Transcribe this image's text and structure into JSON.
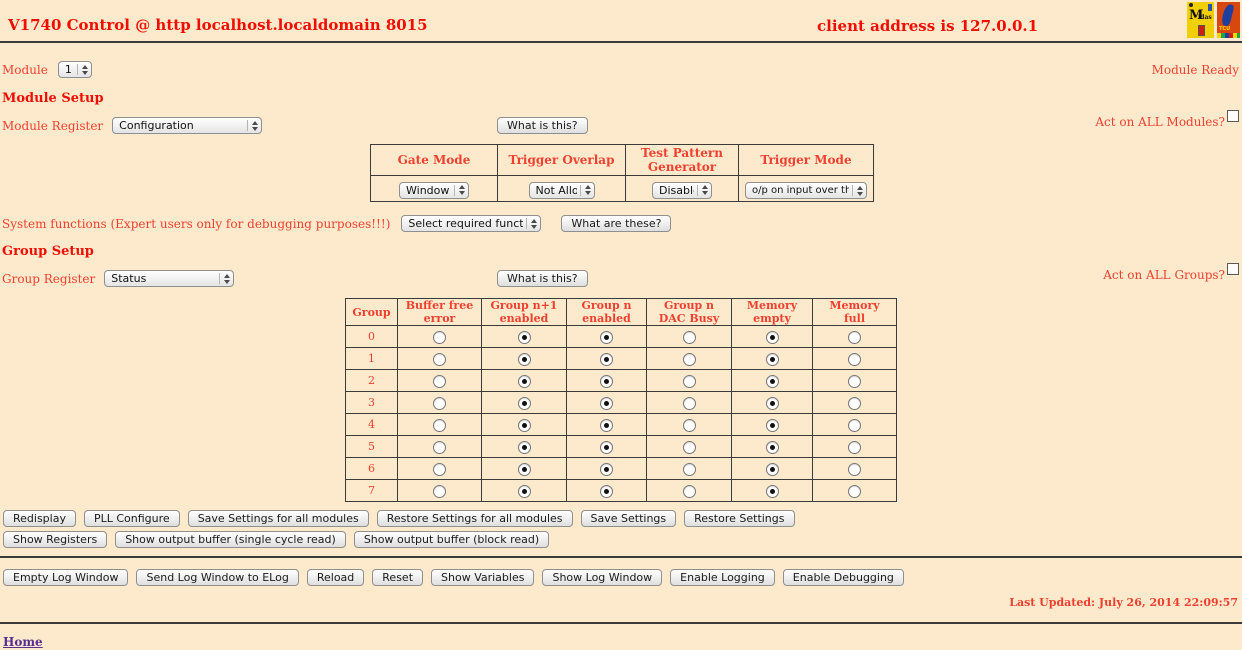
{
  "header": {
    "title": "V1740 Control @ http localhost.localdomain 8015",
    "client_address": "client address is 127.0.0.1",
    "midas_logo_text": "Midas",
    "tcu_logo_text": "TCU"
  },
  "module": {
    "label": "Module",
    "selected": "1",
    "ready_status": "Module Ready"
  },
  "module_setup": {
    "heading": "Module Setup",
    "register_label": "Module Register",
    "register_selected": "Configuration",
    "what_is_this_button": "What is this?",
    "act_on_all_label": "Act on ALL Modules?",
    "config_table": {
      "columns": [
        "Gate Mode",
        "Trigger Overlap",
        "Test Pattern Generator",
        "Trigger Mode"
      ],
      "selected": [
        "Window",
        "Not Allowed",
        "Disabled",
        "o/p on input over threshold"
      ]
    }
  },
  "system_functions": {
    "label": "System functions (Expert users only for debugging purposes!!!)",
    "selected": "Select required function",
    "button": "What are these?"
  },
  "group_setup": {
    "heading": "Group Setup",
    "register_label": "Group Register",
    "register_selected": "Status",
    "what_is_this_button": "What is this?",
    "act_on_all_label": "Act on ALL Groups?",
    "status_table": {
      "columns": [
        "Group",
        "Buffer free error",
        "Group n+1 enabled",
        "Group n enabled",
        "Group n DAC Busy",
        "Memory empty",
        "Memory full"
      ],
      "rows": [
        {
          "group": "0",
          "radios": [
            false,
            true,
            true,
            false,
            true,
            false
          ]
        },
        {
          "group": "1",
          "radios": [
            false,
            true,
            true,
            false,
            true,
            false
          ]
        },
        {
          "group": "2",
          "radios": [
            false,
            true,
            true,
            false,
            true,
            false
          ]
        },
        {
          "group": "3",
          "radios": [
            false,
            true,
            true,
            false,
            true,
            false
          ]
        },
        {
          "group": "4",
          "radios": [
            false,
            true,
            true,
            false,
            true,
            false
          ]
        },
        {
          "group": "5",
          "radios": [
            false,
            true,
            true,
            false,
            true,
            false
          ]
        },
        {
          "group": "6",
          "radios": [
            false,
            true,
            true,
            false,
            true,
            false
          ]
        },
        {
          "group": "7",
          "radios": [
            false,
            true,
            true,
            false,
            true,
            false
          ]
        }
      ]
    }
  },
  "actions": {
    "row1": [
      "Redisplay",
      "PLL Configure",
      "Save Settings for all modules",
      "Restore Settings for all modules",
      "Save Settings",
      "Restore Settings"
    ],
    "row2": [
      "Show Registers",
      "Show output buffer (single cycle read)",
      "Show output buffer (block read)"
    ],
    "row3": [
      "Empty Log Window",
      "Send Log Window to ELog",
      "Reload",
      "Reset",
      "Show Variables",
      "Show Log Window",
      "Enable Logging",
      "Enable Debugging"
    ]
  },
  "footer": {
    "last_updated": "Last Updated: July 26, 2014 22:09:57",
    "home_link": "Home"
  },
  "colors": {
    "background": "#fdeacd",
    "heading_red": "#f20d00",
    "label_red": "#f0402f",
    "link_purple": "#5a2d91",
    "rule_dark": "#3b3b3b"
  }
}
